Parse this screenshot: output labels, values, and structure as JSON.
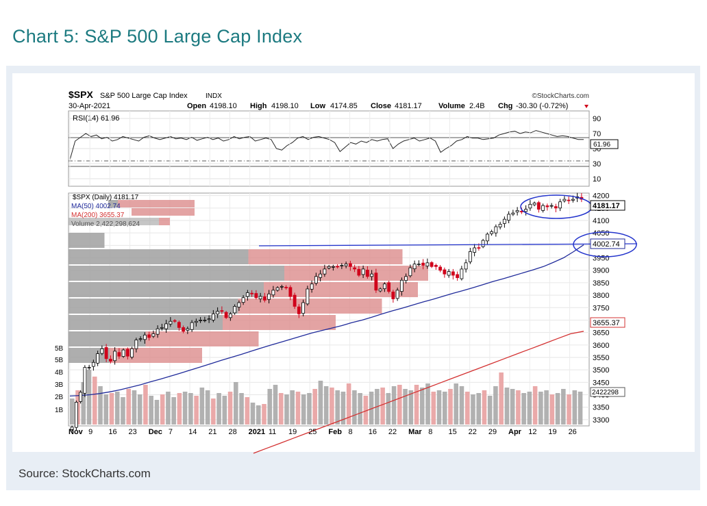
{
  "page": {
    "title": "Chart 5:  S&P 500 Large Cap Index",
    "source": "Source: StockCharts.com"
  },
  "header": {
    "symbol": "$SPX",
    "name": "S&P 500 Large Cap Index",
    "exchange": "INDX",
    "brand": "©StockCharts.com",
    "date": "30-Apr-2021",
    "open_label": "Open",
    "open": "4198.10",
    "high_label": "High",
    "high": "4198.10",
    "low_label": "Low",
    "low": "4174.85",
    "close_label": "Close",
    "close": "4181.17",
    "volume_label": "Volume",
    "volume": "2.4B",
    "chg_label": "Chg",
    "chg": "-30.30 (-0.72%)"
  },
  "legend": {
    "rsi": "RSI(14) 61.96",
    "price": "$SPX (Daily) 4181.17",
    "ma50": "MA(50) 4002.74",
    "ma200": "MA(200) 3655.37",
    "volume": "Volume 2,422,298,624"
  },
  "colors": {
    "up": "#000000",
    "down": "#d0021b",
    "ma50": "#1f2a9a",
    "ma200": "#d33030",
    "vol_up": "#a9a9a9",
    "vol_down": "#e8a0a0",
    "vbp_gray": "#a0a0a0",
    "vbp_red": "#dc8c8c",
    "title_teal": "#1c7a80",
    "annotation": "#2233cc"
  },
  "chart_data": {
    "type": "candlestick",
    "x_tick_labels": [
      "Nov",
      "9",
      "16",
      "23",
      "Dec",
      "7",
      "14",
      "21",
      "28",
      "2021",
      "11",
      "19",
      "25",
      "Feb",
      "8",
      "16",
      "22",
      "Mar",
      "8",
      "15",
      "22",
      "29",
      "Apr",
      "12",
      "19",
      "26"
    ],
    "price_axis_ticks": [
      "4200",
      "4150",
      "4100",
      "4050",
      "4000",
      "3950",
      "3900",
      "3850",
      "3800",
      "3750",
      "3700",
      "3650",
      "3600",
      "3550",
      "3500",
      "3450",
      "3400",
      "3350",
      "3300"
    ],
    "price_ylim": [
      3275,
      4210
    ],
    "rsi_axis_ticks": [
      "90",
      "70",
      "50",
      "30",
      "10"
    ],
    "rsi_ylim": [
      0,
      100
    ],
    "rsi_last": "61.96",
    "volume_axis_ticks": [
      "5B",
      "5B",
      "4B",
      "3B",
      "2B",
      "1B"
    ],
    "last_price": "4181.17",
    "ma50_last": "4002.74",
    "ma200_last": "3655.37",
    "volume_last": "2422298",
    "price_closes": [
      3270,
      3370,
      3410,
      3510,
      3510,
      3530,
      3565,
      3585,
      3545,
      3535,
      3575,
      3555,
      3580,
      3555,
      3585,
      3620,
      3625,
      3640,
      3630,
      3645,
      3665,
      3670,
      3685,
      3695,
      3695,
      3670,
      3655,
      3665,
      3690,
      3695,
      3700,
      3700,
      3705,
      3725,
      3735,
      3735,
      3710,
      3725,
      3755,
      3770,
      3790,
      3810,
      3805,
      3790,
      3795,
      3780,
      3805,
      3820,
      3830,
      3835,
      3830,
      3795,
      3755,
      3725,
      3770,
      3825,
      3845,
      3875,
      3885,
      3905,
      3915,
      3915,
      3915,
      3920,
      3925,
      3915,
      3905,
      3880,
      3905,
      3875,
      3885,
      3820,
      3825,
      3845,
      3815,
      3785,
      3820,
      3860,
      3875,
      3910,
      3925,
      3925,
      3920,
      3930,
      3915,
      3915,
      3900,
      3885,
      3895,
      3880,
      3870,
      3905,
      3930,
      3975,
      3990,
      3990,
      4020,
      4045,
      4055,
      4075,
      4085,
      4105,
      4125,
      4130,
      4140,
      4135,
      4145,
      4165,
      4170,
      4145,
      4160,
      4155,
      4160,
      4150,
      4175,
      4185,
      4180,
      4185,
      4195,
      4185
    ],
    "ma50_values": [
      3395,
      3397,
      3400,
      3405,
      3412,
      3420,
      3430,
      3440,
      3452,
      3463,
      3475,
      3487,
      3500,
      3512,
      3525,
      3538,
      3550,
      3562,
      3575,
      3588,
      3600,
      3612,
      3624,
      3636,
      3648,
      3658,
      3668,
      3678,
      3690,
      3700,
      3712,
      3725,
      3737,
      3748,
      3760,
      3772,
      3783,
      3795,
      3807,
      3818,
      3830,
      3842,
      3855,
      3866,
      3878,
      3890,
      3902,
      3915,
      3932,
      3950,
      3975,
      4002
    ],
    "ma200_values": [
      3165,
      3185,
      3205,
      3225,
      3245,
      3265,
      3285,
      3305,
      3325,
      3345,
      3365,
      3385,
      3405,
      3425,
      3445,
      3465,
      3485,
      3505,
      3525,
      3545,
      3565,
      3585,
      3605,
      3625,
      3645,
      3655
    ],
    "rsi_values": [
      35,
      60,
      65,
      70,
      66,
      68,
      63,
      65,
      60,
      62,
      66,
      64,
      62,
      60,
      65,
      67,
      64,
      62,
      64,
      66,
      63,
      64,
      62,
      65,
      61,
      63,
      65,
      62,
      64,
      60,
      62,
      66,
      63,
      65,
      66,
      60,
      62,
      64,
      62,
      50,
      48,
      54,
      58,
      64,
      66,
      62,
      65,
      66,
      64,
      62,
      58,
      46,
      52,
      58,
      56,
      60,
      58,
      62,
      60,
      62,
      63,
      50,
      56,
      60,
      62,
      64,
      60,
      62,
      64,
      60,
      45,
      50,
      54,
      60,
      62,
      66,
      64,
      64,
      62,
      63,
      64,
      68,
      70,
      72,
      73,
      70,
      72,
      71,
      74,
      72,
      70,
      68,
      66,
      67,
      66,
      64,
      62,
      61.96
    ],
    "volume_values": [
      1.9,
      2.5,
      3.1,
      4.0,
      3.5,
      2.8,
      2.2,
      2.3,
      2.4,
      2.0,
      2.6,
      2.5,
      2.2,
      2.9,
      2.1,
      1.8,
      2.2,
      2.4,
      2.0,
      2.3,
      2.4,
      2.3,
      2.1,
      2.7,
      2.5,
      1.9,
      2.3,
      2.1,
      2.4,
      3.1,
      2.3,
      2.0,
      1.6,
      1.4,
      1.5,
      2.6,
      2.9,
      2.3,
      2.2,
      2.5,
      2.4,
      2.2,
      2.3,
      2.6,
      3.2,
      2.8,
      2.7,
      2.5,
      2.4,
      3.0,
      2.5,
      2.3,
      2.1,
      2.4,
      2.6,
      2.7,
      2.3,
      2.8,
      2.9,
      2.6,
      2.5,
      2.9,
      2.7,
      3.0,
      2.4,
      2.5,
      2.4,
      2.6,
      3.0,
      2.8,
      2.4,
      2.2,
      2.3,
      2.5,
      2.1,
      2.8,
      3.8,
      2.7,
      2.6,
      2.5,
      2.3,
      2.4,
      2.8,
      2.4,
      2.5,
      2.2,
      2.3,
      2.6,
      2.2,
      2.5,
      2.4
    ],
    "volume_by_price": [
      {
        "gray": 0.07,
        "red": 0
      },
      {
        "gray": 0.35,
        "red": 0.3
      },
      {
        "gray": 0.42,
        "red": 0.28
      },
      {
        "gray": 0.38,
        "red": 0.3
      },
      {
        "gray": 0.33,
        "red": 0.28
      },
      {
        "gray": 0.3,
        "red": 0.22
      },
      {
        "gray": 0.15,
        "red": 0.22
      },
      {
        "gray": 0.08,
        "red": 0.18
      }
    ],
    "annotations": {
      "resistance_line": "horizontal line near 3935",
      "circles": [
        "around recent highs near 4181",
        "around MA(50) label 4002.74"
      ]
    }
  }
}
